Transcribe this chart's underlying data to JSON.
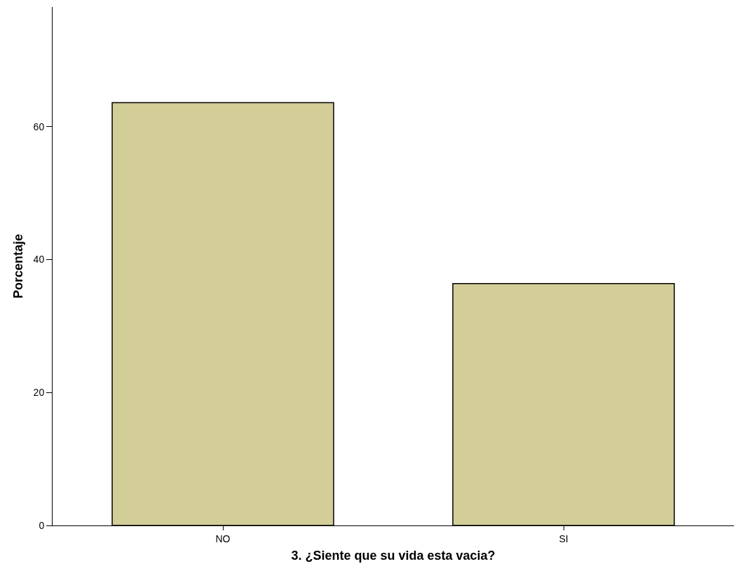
{
  "chart_data": {
    "type": "bar",
    "xlabel": "3. ¿Siente que su vida esta vacia?",
    "ylabel": "Porcentaje",
    "categories": [
      "NO",
      "SI"
    ],
    "values": [
      63.6,
      36.4
    ],
    "color": "#d3ce97",
    "ylim": [
      0,
      78
    ],
    "yticks": [
      0,
      20,
      40,
      60
    ]
  }
}
